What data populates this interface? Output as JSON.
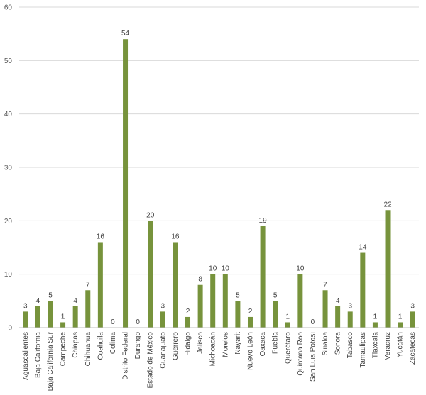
{
  "chart_data": {
    "type": "bar",
    "categories": [
      "Aguascalientes",
      "Baja California",
      "Baja California Sur",
      "Campeche",
      "Chiapas",
      "Chihuahua",
      "Coahuila",
      "Colima",
      "Distrito Federal",
      "Durango",
      "Estado de México",
      "Guanajuato",
      "Guerrero",
      "Hidalgo",
      "Jalisco",
      "Michoacán",
      "Morelos",
      "Nayarit",
      "Nuevo León",
      "Oaxaca",
      "Puebla",
      "Querétaro",
      "Quintana Roo",
      "San Luis Potosí",
      "Sinaloa",
      "Sonora",
      "Tabasco",
      "Tamaulipas",
      "Tlaxcala",
      "Veracruz",
      "Yucatán",
      "Zacatecas"
    ],
    "values": [
      3,
      4,
      5,
      1,
      4,
      7,
      16,
      0,
      54,
      0,
      20,
      3,
      16,
      2,
      8,
      10,
      10,
      5,
      2,
      19,
      5,
      1,
      10,
      0,
      7,
      4,
      3,
      14,
      1,
      22,
      1,
      3
    ],
    "title": "",
    "xlabel": "",
    "ylabel": "",
    "ylim": [
      0,
      60
    ],
    "yticks": [
      0,
      10,
      20,
      30,
      40,
      50,
      60
    ],
    "grid": true,
    "legend": "none",
    "data_labels": true,
    "bar_color": "#77933c",
    "grid_color": "#d9d9d9",
    "axis_color": "#bfbfbf"
  }
}
